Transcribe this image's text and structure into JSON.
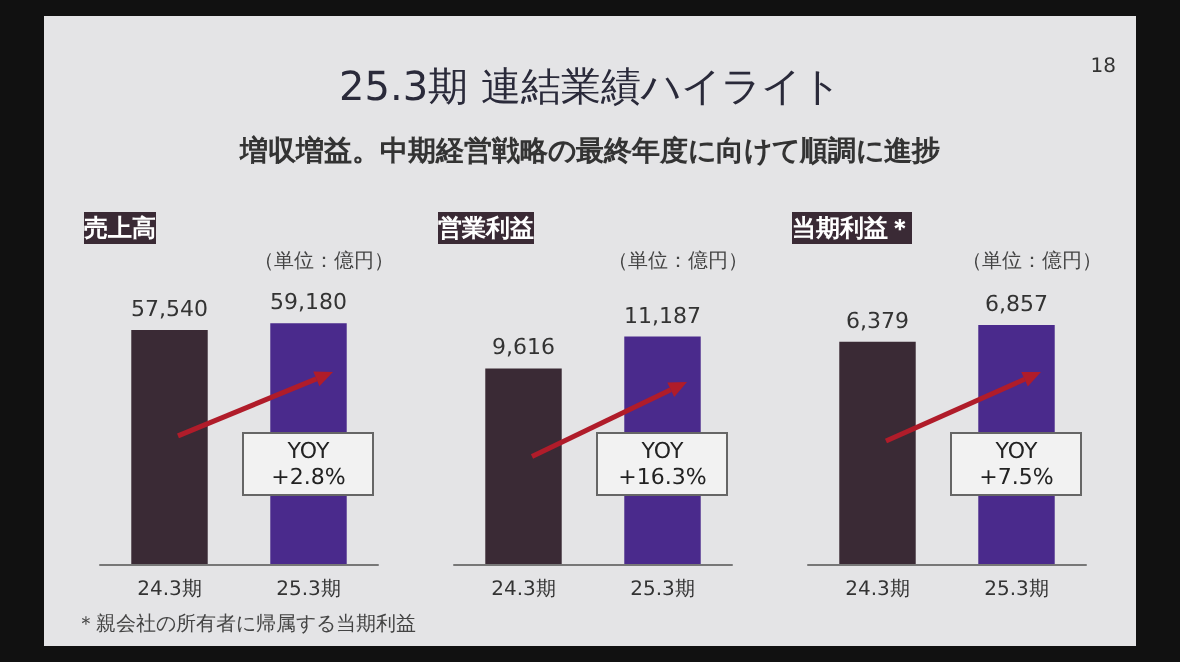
{
  "chart_data": [
    {
      "type": "other",
      "title": "25.3期 連結業績ハイライト",
      "subtitle": "増収増益。中期経営戦略の最終年度に向けて順調に進捗",
      "annotations": [
        "18",
        "＊親会社の所有者に帰属する当期利益"
      ]
    },
    {
      "type": "bar",
      "title": "売上高",
      "categories": [
        "24.3期",
        "25.3期"
      ],
      "values": [
        57540,
        59180
      ],
      "value_labels": [
        "57,540",
        "59,180"
      ],
      "colors": [
        "#3a2a35",
        "#4a2a8c"
      ],
      "annotations": [
        "（単位：億円）",
        "YOY +2.8%"
      ]
    },
    {
      "type": "bar",
      "title": "営業利益",
      "categories": [
        "24.3期",
        "25.3期"
      ],
      "values": [
        9616,
        11187
      ],
      "value_labels": [
        "9,616",
        "11,187"
      ],
      "colors": [
        "#3a2a35",
        "#4a2a8c"
      ],
      "annotations": [
        "（単位：億円）",
        "YOY +16.3%"
      ]
    },
    {
      "type": "bar",
      "title": "当期利益＊",
      "categories": [
        "24.3期",
        "25.3期"
      ],
      "values": [
        6379,
        6857
      ],
      "value_labels": [
        "6,379",
        "6,857"
      ],
      "colors": [
        "#3a2a35",
        "#4a2a8c"
      ],
      "annotations": [
        "（単位：億円）",
        "YOY +7.5%"
      ]
    }
  ]
}
